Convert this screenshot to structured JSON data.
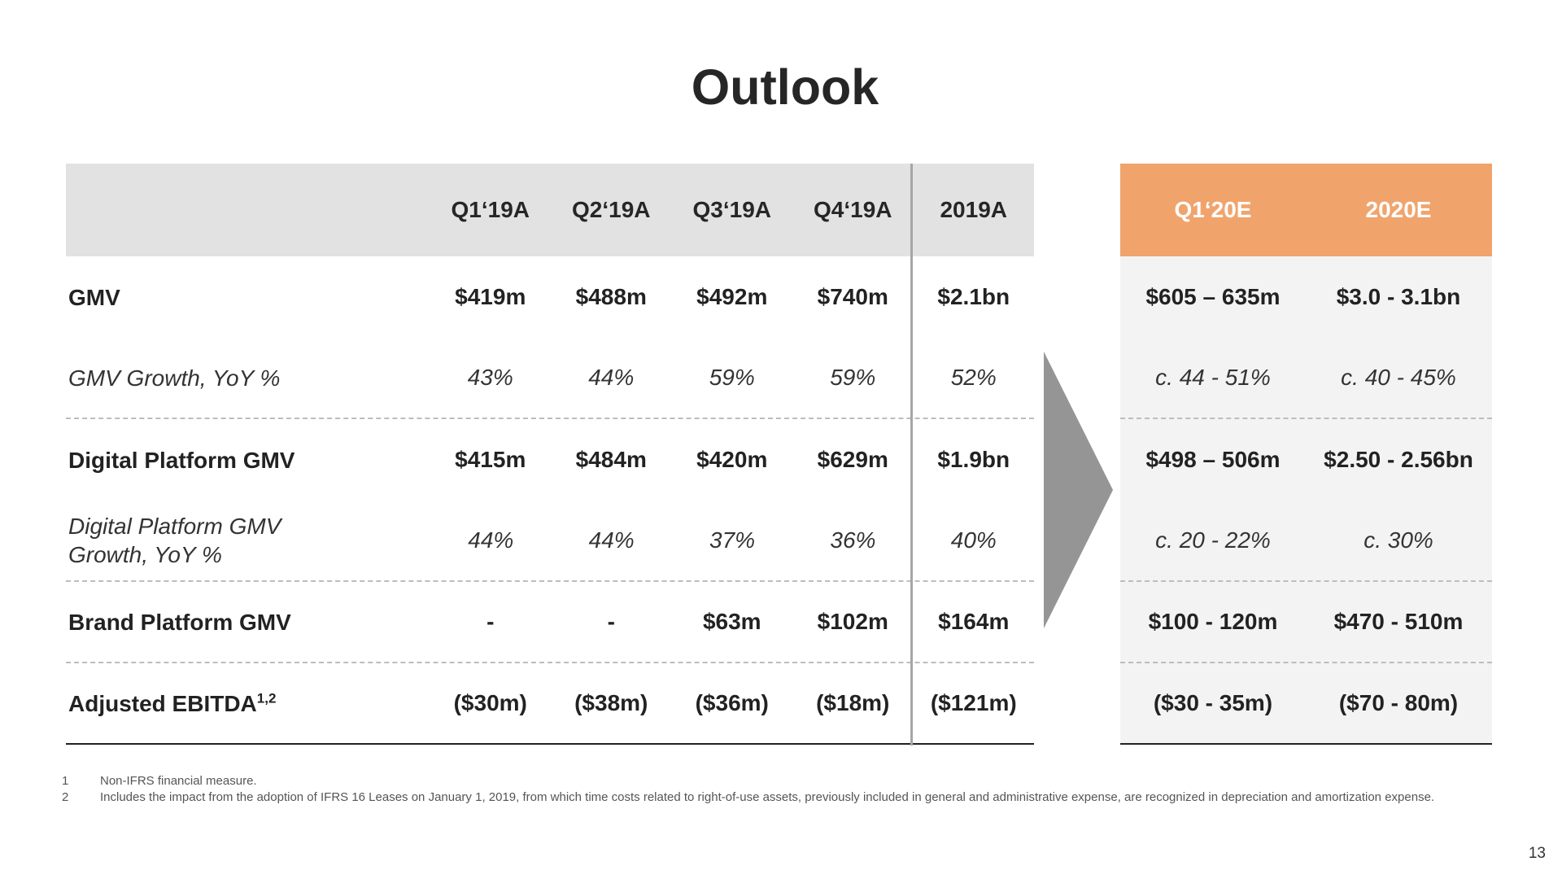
{
  "title": "Outlook",
  "left_table": {
    "headers": [
      "Q1‘19A",
      "Q2‘19A",
      "Q3‘19A",
      "Q4‘19A",
      "2019A"
    ],
    "rows": [
      {
        "label": "GMV",
        "values": [
          "$419m",
          "$488m",
          "$492m",
          "$740m",
          "$2.1bn"
        ]
      },
      {
        "label": "GMV Growth, YoY %",
        "values": [
          "43%",
          "44%",
          "59%",
          "59%",
          "52%"
        ]
      },
      {
        "label": "Digital Platform GMV",
        "values": [
          "$415m",
          "$484m",
          "$420m",
          "$629m",
          "$1.9bn"
        ]
      },
      {
        "label": "Digital Platform GMV Growth, YoY %",
        "values": [
          "44%",
          "44%",
          "37%",
          "36%",
          "40%"
        ]
      },
      {
        "label": "Brand Platform GMV",
        "values": [
          "-",
          "-",
          "$63m",
          "$102m",
          "$164m"
        ]
      },
      {
        "label": "Adjusted EBITDA",
        "label_sup": "1,2",
        "values": [
          "($30m)",
          "($38m)",
          "($36m)",
          "($18m)",
          "($121m)"
        ]
      }
    ]
  },
  "right_table": {
    "headers": [
      "Q1‘20E",
      "2020E"
    ],
    "rows": [
      [
        "$605 – 635m",
        "$3.0 - 3.1bn"
      ],
      [
        "c. 44 - 51%",
        "c. 40 - 45%"
      ],
      [
        "$498 – 506m",
        "$2.50 - 2.56bn"
      ],
      [
        "c. 20 - 22%",
        "c. 30%"
      ],
      [
        "$100 - 120m",
        "$470 - 510m"
      ],
      [
        "($30 - 35m)",
        "($70 - 80m)"
      ]
    ]
  },
  "footnotes": [
    {
      "num": "1",
      "text": "Non-IFRS financial measure."
    },
    {
      "num": "2",
      "text": "Includes the impact from the adoption of IFRS 16 Leases on January 1, 2019, from which time costs related to right-of-use assets, previously included in general and administrative expense, are recognized in depreciation and amortization expense."
    }
  ],
  "page_number": "13",
  "colors": {
    "header_gray": "#e2e2e2",
    "header_orange": "#f0a46c",
    "arrow": "#959595"
  }
}
